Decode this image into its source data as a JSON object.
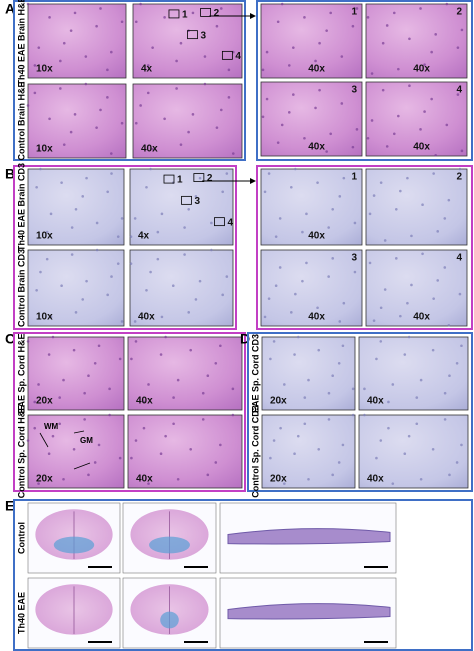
{
  "panels": [
    {
      "letter": "A",
      "rows": [
        {
          "label": "Th40 EAE Brain H&E",
          "images": [
            {
              "caption": "10x"
            },
            {
              "caption": "4x",
              "regions": [
                "1",
                "2",
                "3",
                "4"
              ]
            }
          ]
        },
        {
          "label": "Control Brain H&E",
          "images": [
            {
              "caption": "10x"
            },
            {
              "caption": "40x"
            }
          ]
        }
      ],
      "zoom": [
        {
          "number": "1",
          "caption": "40x"
        },
        {
          "number": "2",
          "caption": "40x"
        },
        {
          "number": "3",
          "caption": "40x"
        },
        {
          "number": "4",
          "caption": "40x"
        }
      ]
    },
    {
      "letter": "B",
      "rows": [
        {
          "label": "Th40 EAE Brain CD3",
          "images": [
            {
              "caption": "10x"
            },
            {
              "caption": "4x",
              "regions": [
                "1",
                "2",
                "3",
                "4"
              ]
            }
          ]
        },
        {
          "label": "Control Brain CD3",
          "images": [
            {
              "caption": "10x"
            },
            {
              "caption": "40x"
            }
          ]
        }
      ],
      "zoom": [
        {
          "number": "1",
          "caption": "40x"
        },
        {
          "number": "2"
        },
        {
          "number": "3",
          "caption": "40x"
        },
        {
          "number": "4",
          "caption": "40x"
        }
      ]
    },
    {
      "letter": "C",
      "rows": [
        {
          "label": "EAE Sp. Cord H&E",
          "images": [
            {
              "caption": "20x"
            },
            {
              "caption": "40x"
            }
          ]
        },
        {
          "label": "Control Sp. Cord H&E",
          "images": [
            {
              "caption": "20x",
              "annotations": [
                "WM",
                "GM"
              ]
            },
            {
              "caption": "40x"
            }
          ]
        }
      ]
    },
    {
      "letter": "D",
      "rows": [
        {
          "label": "EAE Sp. Cord CD3",
          "images": [
            {
              "caption": "20x"
            },
            {
              "caption": "40x"
            }
          ]
        },
        {
          "label": "Control Sp. Cord CD3",
          "images": [
            {
              "caption": "20x"
            },
            {
              "caption": "40x"
            }
          ]
        }
      ]
    },
    {
      "letter": "E",
      "rows": [
        {
          "label": "Control",
          "images": [
            {},
            {},
            {}
          ]
        },
        {
          "label": "Th40 EAE",
          "images": [
            {},
            {},
            {}
          ]
        }
      ]
    }
  ]
}
